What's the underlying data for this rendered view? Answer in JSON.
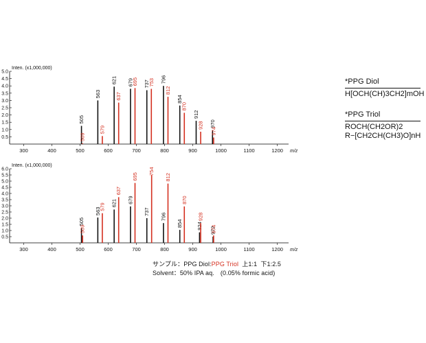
{
  "legend": {
    "diol_title": "*PPG Diol",
    "diol_formula": "H[OCH(CH)3CH2]mOH",
    "triol_title": "*PPG Triol",
    "triol_formula1": "ROCH(CH2OR)2",
    "triol_formula2": "R−[CH2CH(CH3)O]nH"
  },
  "notes": {
    "sample_prefix": "サンプル：",
    "sample_diol": "PPG Diol",
    "sample_sep": ":",
    "sample_triol": "PPG Triol",
    "sample_upper": "上1:1",
    "sample_lower": "下1:2.5",
    "solvent": "Solvent：50% IPA aq.　(0.05% formic acid)"
  },
  "colors": {
    "diol": "#111111",
    "triol": "#d42f1f",
    "axis": "#000000"
  },
  "chart_data": [
    {
      "type": "bar",
      "title": "",
      "ylabel": "Inten. (x1,000,000)",
      "xlabel": "m/z",
      "xlim": [
        250,
        1240
      ],
      "ylim": [
        0,
        5.0
      ],
      "xticks": [
        300,
        400,
        500,
        600,
        700,
        800,
        900,
        1000,
        1100,
        1200
      ],
      "yticks": [
        0.5,
        1.0,
        1.5,
        2.0,
        2.5,
        3.0,
        3.5,
        4.0,
        4.5,
        5.0
      ],
      "grid": false,
      "series": [
        {
          "name": "PPG Diol",
          "color": "#111111",
          "peaks": [
            {
              "mz": 505,
              "i": 1.25,
              "label": "505"
            },
            {
              "mz": 563,
              "i": 3.0,
              "label": "563"
            },
            {
              "mz": 621,
              "i": 3.95,
              "label": "621"
            },
            {
              "mz": 679,
              "i": 3.8,
              "label": "679"
            },
            {
              "mz": 737,
              "i": 3.7,
              "label": "737"
            },
            {
              "mz": 796,
              "i": 4.0,
              "label": "796"
            },
            {
              "mz": 854,
              "i": 2.65,
              "label": "854"
            },
            {
              "mz": 912,
              "i": 1.6,
              "label": "912"
            },
            {
              "mz": 970,
              "i": 0.95,
              "label": "970"
            }
          ]
        },
        {
          "name": "PPG Triol",
          "color": "#d42f1f",
          "peaks": [
            {
              "mz": 509,
              "i": 0.05,
              "label": "509"
            },
            {
              "mz": 579,
              "i": 0.55,
              "label": "579"
            },
            {
              "mz": 637,
              "i": 2.85,
              "label": "637"
            },
            {
              "mz": 695,
              "i": 3.85,
              "label": "695"
            },
            {
              "mz": 753,
              "i": 3.8,
              "label": "753"
            },
            {
              "mz": 812,
              "i": 3.25,
              "label": "812"
            },
            {
              "mz": 870,
              "i": 2.15,
              "label": "870"
            },
            {
              "mz": 928,
              "i": 0.85,
              "label": "928"
            },
            {
              "mz": 974,
              "i": 0.45,
              "label": "974"
            }
          ]
        }
      ]
    },
    {
      "type": "bar",
      "title": "",
      "ylabel": "Inten. (x1,000,000)",
      "xlabel": "m/z",
      "xlim": [
        250,
        1240
      ],
      "ylim": [
        0,
        6.0
      ],
      "xticks": [
        300,
        400,
        500,
        600,
        700,
        800,
        900,
        1000,
        1100,
        1200
      ],
      "yticks": [
        0.5,
        1.0,
        1.5,
        2.0,
        2.5,
        3.0,
        3.5,
        4.0,
        4.5,
        5.0,
        5.5,
        6.0
      ],
      "grid": false,
      "series": [
        {
          "name": "PPG Diol",
          "color": "#111111",
          "peaks": [
            {
              "mz": 505,
              "i": 1.2,
              "label": "505"
            },
            {
              "mz": 563,
              "i": 2.05,
              "label": "563"
            },
            {
              "mz": 621,
              "i": 2.7,
              "label": "621"
            },
            {
              "mz": 679,
              "i": 2.95,
              "label": "679"
            },
            {
              "mz": 737,
              "i": 2.0,
              "label": "737"
            },
            {
              "mz": 796,
              "i": 1.6,
              "label": "796"
            },
            {
              "mz": 854,
              "i": 1.05,
              "label": "854"
            },
            {
              "mz": 924,
              "i": 0.85,
              "label": "924"
            },
            {
              "mz": 972,
              "i": 0.5,
              "label": "972"
            }
          ]
        },
        {
          "name": "PPG Triol",
          "color": "#d42f1f",
          "peaks": [
            {
              "mz": 509,
              "i": 0.6,
              "label": "509"
            },
            {
              "mz": 579,
              "i": 2.4,
              "label": "579"
            },
            {
              "mz": 637,
              "i": 3.7,
              "label": "637"
            },
            {
              "mz": 695,
              "i": 4.85,
              "label": "695"
            },
            {
              "mz": 754,
              "i": 5.5,
              "label": "754"
            },
            {
              "mz": 812,
              "i": 4.8,
              "label": "812"
            },
            {
              "mz": 870,
              "i": 2.95,
              "label": "870"
            },
            {
              "mz": 928,
              "i": 1.6,
              "label": "928"
            },
            {
              "mz": 974,
              "i": 0.6,
              "label": "974"
            }
          ]
        }
      ]
    }
  ]
}
